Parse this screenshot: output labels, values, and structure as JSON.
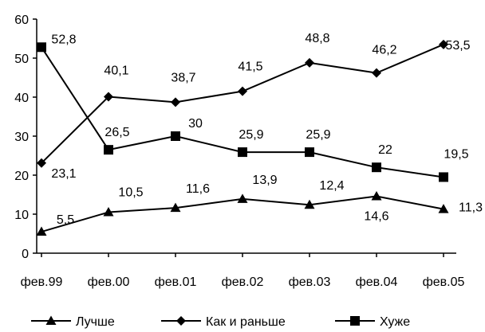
{
  "chart_data": {
    "type": "line",
    "title": "",
    "xlabel": "",
    "ylabel": "",
    "categories": [
      "фев.99",
      "фев.00",
      "фев.01",
      "фев.02",
      "фев.03",
      "фев.04",
      "фев.05"
    ],
    "ylim": [
      0,
      60
    ],
    "yticks": [
      0,
      10,
      20,
      30,
      40,
      50,
      60
    ],
    "grid": false,
    "legend_position": "bottom",
    "series": [
      {
        "name": "Лучше",
        "marker": "triangle",
        "color": "#000000",
        "values": [
          5.5,
          10.5,
          11.6,
          13.9,
          12.4,
          14.6,
          11.3
        ],
        "labels": [
          "5,5",
          "10,5",
          "11,6",
          "13,9",
          "12,4",
          "14,6",
          "11,3"
        ]
      },
      {
        "name": "Как и раньше",
        "marker": "diamond",
        "color": "#000000",
        "values": [
          23.1,
          40.1,
          38.7,
          41.5,
          48.8,
          46.2,
          53.5
        ],
        "labels": [
          "23,1",
          "40,1",
          "38,7",
          "41,5",
          "48,8",
          "46,2",
          "53,5"
        ]
      },
      {
        "name": "Хуже",
        "marker": "square",
        "color": "#000000",
        "values": [
          52.8,
          26.5,
          30,
          25.9,
          25.9,
          22,
          19.5
        ],
        "labels": [
          "52,8",
          "26,5",
          "30",
          "25,9",
          "25,9",
          "22",
          "19,5"
        ]
      }
    ]
  }
}
